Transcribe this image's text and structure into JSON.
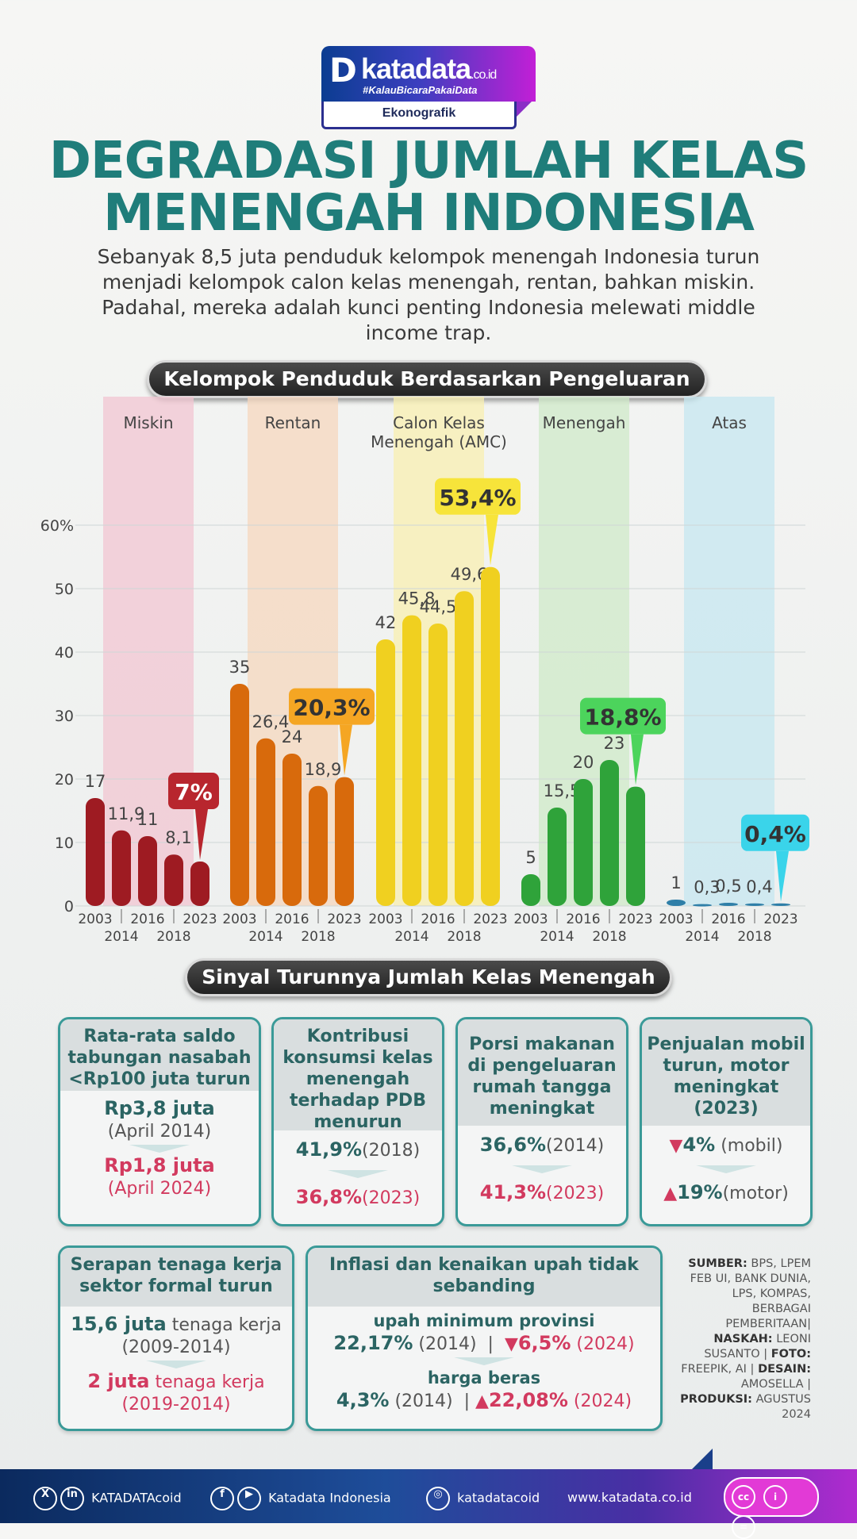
{
  "logo": {
    "mark": "D",
    "brand": "katadata",
    "domain": ".co.id",
    "hashtag": "#KalauBicaraPakaiData",
    "section": "Ekonografik"
  },
  "title_line1": "DEGRADASI JUMLAH KELAS",
  "title_line2": "MENENGAH INDONESIA",
  "subtitle": "Sebanyak 8,5 juta penduduk kelompok menengah Indonesia turun menjadi kelompok calon kelas menengah, rentan, bahkan miskin. Padahal, mereka adalah kunci penting Indonesia melewati middle income trap.",
  "section1": "Kelompok Penduduk Berdasarkan Pengeluaran",
  "section2": "Sinyal Turunnya Jumlah Kelas Menengah",
  "chart_data": {
    "type": "bar",
    "title": "Kelompok Penduduk Berdasarkan Pengeluaran",
    "years": [
      "2003",
      "2014",
      "2016",
      "2018",
      "2023"
    ],
    "ylim": [
      0,
      60
    ],
    "yticks": [
      "0",
      "10",
      "20",
      "30",
      "40",
      "50",
      "60%"
    ],
    "grid": true,
    "groups": [
      {
        "name": "Miskin",
        "values": [
          17,
          11.9,
          11,
          8.1,
          7
        ],
        "labels": [
          "17",
          "11,9",
          "11",
          "8,1",
          "7%"
        ],
        "color": "#9e1b22",
        "tint": "#f2c6d2"
      },
      {
        "name": "Rentan",
        "values": [
          35,
          26.4,
          24,
          18.9,
          20.3
        ],
        "labels": [
          "35",
          "26,4",
          "24",
          "18,9",
          "20,3%"
        ],
        "color": "#d86a0c",
        "tint": "#f5d7be"
      },
      {
        "name": "Calon Kelas Menengah (AMC)",
        "values": [
          42,
          45.8,
          44.5,
          49.6,
          53.4
        ],
        "labels": [
          "42",
          "45,8",
          "44,5",
          "49,6",
          "53,4%"
        ],
        "color": "#f0d020",
        "tint": "#f8efb0"
      },
      {
        "name": "Menengah",
        "values": [
          5,
          15.5,
          20,
          23,
          18.8
        ],
        "labels": [
          "5",
          "15,5",
          "20",
          "23",
          "18,8%"
        ],
        "color": "#2fa33a",
        "tint": "#cfe9c8"
      },
      {
        "name": "Atas",
        "values": [
          1,
          0.3,
          0.5,
          0.4,
          0.4
        ],
        "labels": [
          "1",
          "0,3",
          "0,5",
          "0,4",
          "0,4%"
        ],
        "color": "#2f7fa8",
        "tint": "#c6e7f0"
      }
    ],
    "callout_colors": [
      "#b8262e",
      "#f5a623",
      "#f7e43a",
      "#4cd45c",
      "#3ad4ea"
    ]
  },
  "cards": [
    {
      "head": "Rata-rata saldo tabungan nasabah <Rp100 juta turun",
      "a_val": "Rp3,8 juta",
      "a_sub": "(April 2014)",
      "b_val": "Rp1,8 juta",
      "b_sub": "(April 2024)"
    },
    {
      "head": "Kontribusi konsumsi kelas menengah terhadap PDB menurun",
      "a_val": "41,9%",
      "a_sub": "(2018)",
      "b_val": "36,8%",
      "b_sub": "(2023)"
    },
    {
      "head": "Porsi makanan di pengeluaran rumah tangga meningkat",
      "a_val": "36,6%",
      "a_sub": "(2014)",
      "b_val": "41,3%",
      "b_sub": "(2023)"
    },
    {
      "head": "Penjualan mobil turun, motor meningkat (2023)",
      "a_val": "4%",
      "a_sub": "(mobil)",
      "b_val": "19%",
      "b_sub": "(motor)"
    },
    {
      "head": "Serapan tenaga kerja sektor formal turun",
      "a_val": "15,6 juta",
      "a_sub": "tenaga kerja (2009-2014)",
      "b_val": "2 juta",
      "b_sub": "tenaga kerja (2019-2014)"
    },
    {
      "head": "Inflasi dan kenaikan upah tidak sebanding",
      "r1_label": "upah minimum provinsi",
      "r1_a": "22,17%",
      "r1_a_sub": "(2014)",
      "r1_b": "6,5%",
      "r1_b_sub": "(2024)",
      "r2_label": "harga beras",
      "r2_a": "4,3%",
      "r2_a_sub": "(2014)",
      "r2_b": "22,08%",
      "r2_b_sub": "(2024)"
    }
  ],
  "source": {
    "l1": "SUMBER:",
    "t1": "BPS, LPEM FEB UI, BANK DUNIA, LPS, KOMPAS, BERBAGAI PEMBERITAAN|",
    "l2": "NASKAH:",
    "t2": "LEONI SUSANTO |",
    "l3": "FOTO:",
    "t3": "FREEPIK, AI |",
    "l4": "DESAIN:",
    "t4": "AMOSELLA |",
    "l5": "PRODUKSI:",
    "t5": "AGUSTUS 2024"
  },
  "footer": {
    "s1": "KATADATAcoid",
    "s2": "Katadata Indonesia",
    "s3": "katadatacoid",
    "s4": "www.katadata.co.id"
  }
}
